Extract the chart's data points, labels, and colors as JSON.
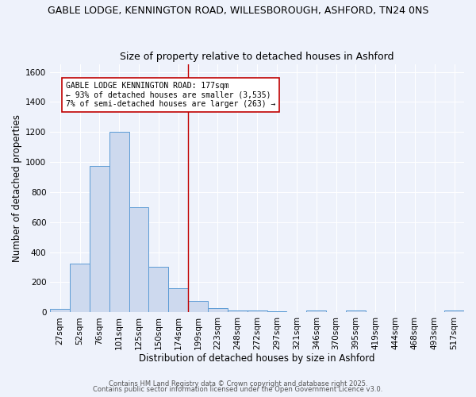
{
  "title1": "GABLE LODGE, KENNINGTON ROAD, WILLESBOROUGH, ASHFORD, TN24 0NS",
  "title2": "Size of property relative to detached houses in Ashford",
  "xlabel": "Distribution of detached houses by size in Ashford",
  "ylabel": "Number of detached properties",
  "categories": [
    "27sqm",
    "52sqm",
    "76sqm",
    "101sqm",
    "125sqm",
    "150sqm",
    "174sqm",
    "199sqm",
    "223sqm",
    "248sqm",
    "272sqm",
    "297sqm",
    "321sqm",
    "346sqm",
    "370sqm",
    "395sqm",
    "419sqm",
    "444sqm",
    "468sqm",
    "493sqm",
    "517sqm"
  ],
  "values": [
    25,
    325,
    975,
    1200,
    700,
    305,
    160,
    75,
    30,
    15,
    10,
    5,
    0,
    10,
    0,
    10,
    0,
    0,
    0,
    0,
    10
  ],
  "bar_color": "#cdd9ee",
  "bar_edge_color": "#5b9bd5",
  "vline_x_idx": 6.5,
  "vline_color": "#c00000",
  "annotation_text": "GABLE LODGE KENNINGTON ROAD: 177sqm\n← 93% of detached houses are smaller (3,535)\n7% of semi-detached houses are larger (263) →",
  "annotation_box_color": "#ffffff",
  "annotation_box_edge": "#c00000",
  "ylim": [
    0,
    1650
  ],
  "yticks": [
    0,
    200,
    400,
    600,
    800,
    1000,
    1200,
    1400,
    1600
  ],
  "footer1": "Contains HM Land Registry data © Crown copyright and database right 2025.",
  "footer2": "Contains public sector information licensed under the Open Government Licence v3.0.",
  "bg_color": "#eef2fb",
  "grid_color": "#ffffff",
  "title1_fontsize": 9,
  "title2_fontsize": 9,
  "axis_label_fontsize": 8.5,
  "tick_fontsize": 7.5,
  "annot_fontsize": 7
}
